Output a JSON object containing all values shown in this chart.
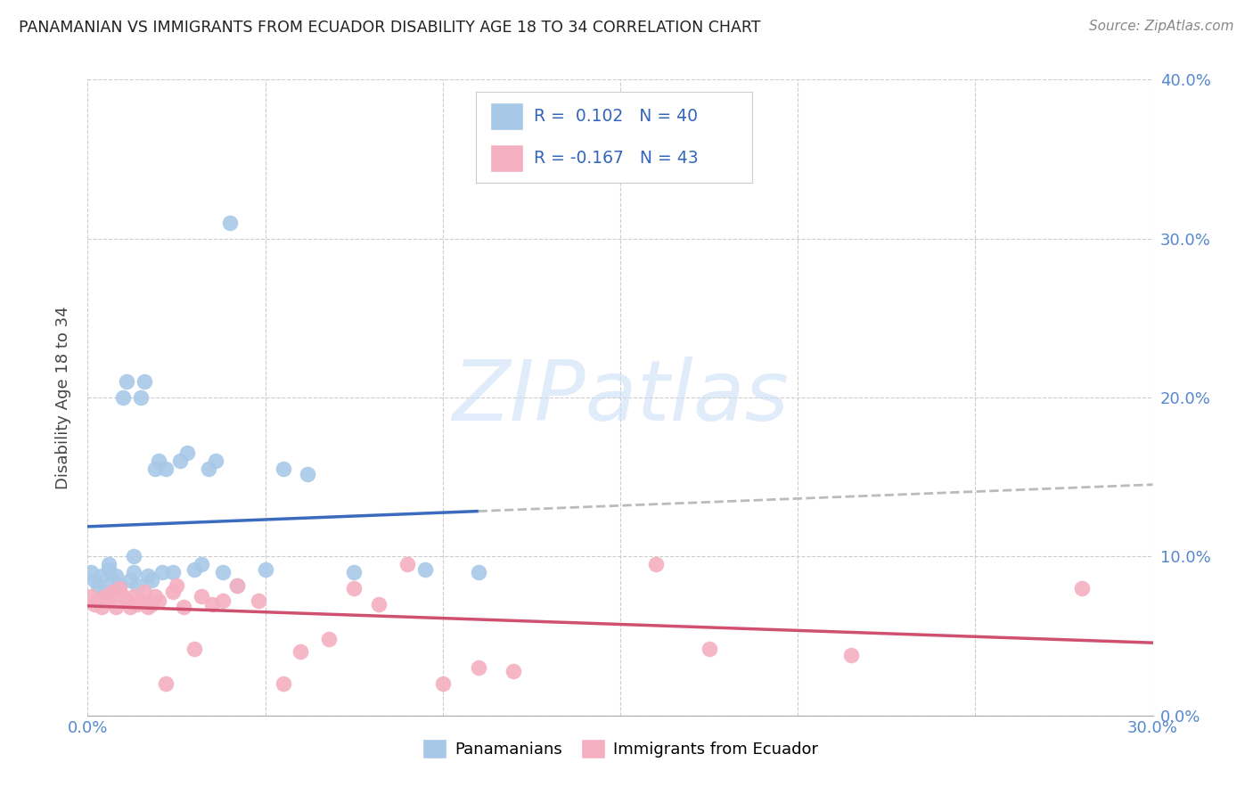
{
  "title": "PANAMANIAN VS IMMIGRANTS FROM ECUADOR DISABILITY AGE 18 TO 34 CORRELATION CHART",
  "source": "Source: ZipAtlas.com",
  "ylabel_label": "Disability Age 18 to 34",
  "xlim": [
    0.0,
    0.3
  ],
  "ylim": [
    0.0,
    0.4
  ],
  "x_ticks": [
    0.0,
    0.05,
    0.1,
    0.15,
    0.2,
    0.25,
    0.3
  ],
  "y_ticks": [
    0.0,
    0.1,
    0.2,
    0.3,
    0.4
  ],
  "series1_color": "#a8c8e8",
  "series2_color": "#f4afc0",
  "trendline1_solid_color": "#3a6bbf",
  "trendline1_dash_color": "#bbbbbb",
  "trendline2_color": "#d05070",
  "tick_color": "#5588cc",
  "watermark_text": "ZIPatlas",
  "legend_r1_label": "R =  0.102   N = 40",
  "legend_r2_label": "R = -0.167   N = 43",
  "pan_x": [
    0.001,
    0.002,
    0.003,
    0.004,
    0.005,
    0.006,
    0.006,
    0.007,
    0.008,
    0.009,
    0.01,
    0.011,
    0.012,
    0.013,
    0.013,
    0.014,
    0.015,
    0.016,
    0.017,
    0.018,
    0.019,
    0.02,
    0.021,
    0.022,
    0.024,
    0.026,
    0.028,
    0.03,
    0.032,
    0.034,
    0.036,
    0.038,
    0.04,
    0.042,
    0.05,
    0.055,
    0.062,
    0.075,
    0.095,
    0.11
  ],
  "pan_y": [
    0.09,
    0.085,
    0.082,
    0.088,
    0.078,
    0.092,
    0.095,
    0.085,
    0.088,
    0.082,
    0.2,
    0.21,
    0.085,
    0.09,
    0.1,
    0.082,
    0.2,
    0.21,
    0.088,
    0.085,
    0.155,
    0.16,
    0.09,
    0.155,
    0.09,
    0.16,
    0.165,
    0.092,
    0.095,
    0.155,
    0.16,
    0.09,
    0.31,
    0.082,
    0.092,
    0.155,
    0.152,
    0.09,
    0.092,
    0.09
  ],
  "ecu_x": [
    0.001,
    0.002,
    0.003,
    0.004,
    0.005,
    0.006,
    0.007,
    0.008,
    0.009,
    0.01,
    0.011,
    0.012,
    0.013,
    0.014,
    0.015,
    0.016,
    0.017,
    0.018,
    0.019,
    0.02,
    0.022,
    0.024,
    0.025,
    0.027,
    0.03,
    0.032,
    0.035,
    0.038,
    0.042,
    0.048,
    0.055,
    0.06,
    0.068,
    0.075,
    0.082,
    0.09,
    0.1,
    0.11,
    0.12,
    0.16,
    0.175,
    0.215,
    0.28
  ],
  "ecu_y": [
    0.075,
    0.07,
    0.072,
    0.068,
    0.075,
    0.072,
    0.078,
    0.068,
    0.08,
    0.075,
    0.072,
    0.068,
    0.075,
    0.07,
    0.072,
    0.078,
    0.068,
    0.07,
    0.075,
    0.072,
    0.02,
    0.078,
    0.082,
    0.068,
    0.042,
    0.075,
    0.07,
    0.072,
    0.082,
    0.072,
    0.02,
    0.04,
    0.048,
    0.08,
    0.07,
    0.095,
    0.02,
    0.03,
    0.028,
    0.095,
    0.042,
    0.038,
    0.08
  ]
}
